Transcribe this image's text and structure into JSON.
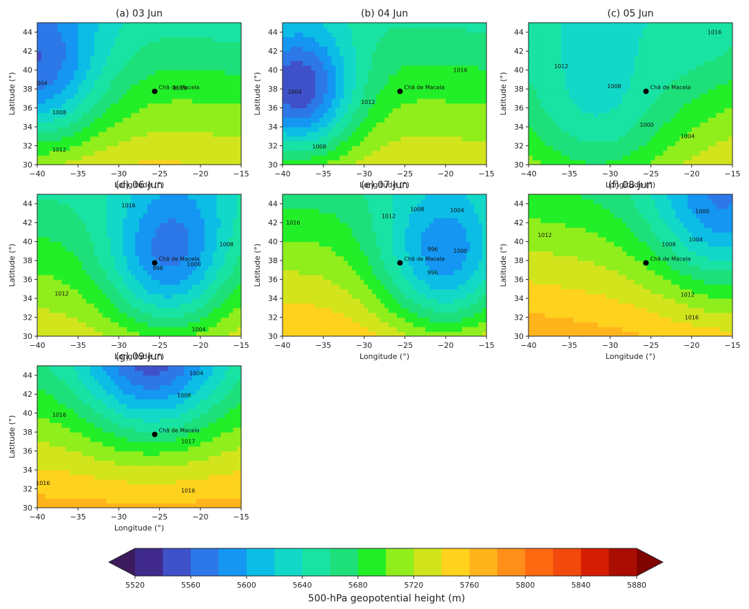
{
  "station": "Chã de Macela",
  "station_location": {
    "lon": -25.6,
    "lat": 37.75
  },
  "axis": {
    "xlabel": "Longitude (°)",
    "ylabel": "Latitude (°)",
    "xticks": [
      "−40",
      "−35",
      "−30",
      "−25",
      "−20",
      "−15"
    ],
    "yticks": [
      "30",
      "32",
      "34",
      "36",
      "38",
      "40",
      "42",
      "44"
    ],
    "xlim": [
      -40,
      -15
    ],
    "ylim": [
      30,
      45
    ]
  },
  "panels": [
    {
      "title": "(a) 03 Jun",
      "height_field": {
        "base": 5700,
        "grad": [
          -0.6,
          6.0
        ],
        "features": [
          {
            "lon": -40.5,
            "lat": 39.8,
            "amp": -130,
            "r": 6
          }
        ]
      },
      "contours": [
        {
          "label": "1004",
          "label_at": [
            -39.6,
            38.4
          ]
        },
        {
          "label": "1008",
          "label_at": [
            -37.3,
            35.3
          ]
        },
        {
          "label": "1012",
          "label_at": [
            -37.3,
            31.4
          ]
        },
        {
          "label": "1016",
          "label_at": [
            -22.5,
            37.9
          ]
        }
      ]
    },
    {
      "title": "(b) 04 Jun",
      "height_field": {
        "base": 5700,
        "grad": [
          -0.5,
          5.2
        ],
        "features": [
          {
            "lon": -38.3,
            "lat": 37.5,
            "amp": -160,
            "r": 5
          }
        ]
      },
      "contours": [
        {
          "label": "1004",
          "label_at": [
            -38.5,
            37.5
          ]
        },
        {
          "label": "1008",
          "label_at": [
            -35.5,
            31.7
          ]
        },
        {
          "label": "1012",
          "label_at": [
            -29.5,
            36.4
          ]
        },
        {
          "label": "1016",
          "label_at": [
            -18.2,
            39.8
          ]
        }
      ]
    },
    {
      "title": "(c) 05 Jun",
      "height_field": {
        "base": 5700,
        "grad": [
          0.3,
          5.0
        ],
        "features": [
          {
            "lon": -31.5,
            "lat": 35.0,
            "amp": -70,
            "r": 7
          },
          {
            "lon": -18,
            "lat": 43,
            "amp": -20,
            "r": 5
          }
        ]
      },
      "contours": [
        {
          "label": "1016",
          "label_at": [
            -17.2,
            43.8
          ]
        },
        {
          "label": "1012",
          "label_at": [
            -36.0,
            40.2
          ]
        },
        {
          "label": "1008",
          "label_at": [
            -29.5,
            38.1
          ]
        },
        {
          "label": "1000",
          "label_at": [
            -25.5,
            34.0
          ]
        },
        {
          "label": "1004",
          "label_at": [
            -20.5,
            32.8
          ]
        }
      ]
    },
    {
      "title": "(d) 06 Jun",
      "height_field": {
        "base": 5700,
        "grad": [
          0.2,
          5.2
        ],
        "features": [
          {
            "lon": -24.0,
            "lat": 37.6,
            "amp": -115,
            "r": 5.5
          },
          {
            "lon": -21,
            "lat": 44,
            "amp": -20,
            "r": 5
          }
        ]
      },
      "contours": [
        {
          "label": "1016",
          "label_at": [
            -28.8,
            43.6
          ]
        },
        {
          "label": "1012",
          "label_at": [
            -37.0,
            34.3
          ]
        },
        {
          "label": "1008",
          "label_at": [
            -16.8,
            39.5
          ]
        },
        {
          "label": "1000",
          "label_at": [
            -20.8,
            37.4
          ]
        },
        {
          "label": "1004",
          "label_at": [
            -20.2,
            30.5
          ]
        },
        {
          "label": "996",
          "label_at": [
            -25.2,
            37.0
          ]
        }
      ]
    },
    {
      "title": "(e) 07 Jun",
      "height_field": {
        "base": 5720,
        "grad": [
          0.3,
          6.0
        ],
        "features": [
          {
            "lon": -20.0,
            "lat": 37.6,
            "amp": -130,
            "r": 6
          }
        ]
      },
      "contours": [
        {
          "label": "1016",
          "label_at": [
            -38.7,
            41.8
          ]
        },
        {
          "label": "1012",
          "label_at": [
            -27.0,
            42.5
          ]
        },
        {
          "label": "1008",
          "label_at": [
            -23.5,
            43.2
          ]
        },
        {
          "label": "1004",
          "label_at": [
            -18.6,
            43.1
          ]
        },
        {
          "label": "1000",
          "label_at": [
            -18.2,
            38.8
          ]
        },
        {
          "label": "996",
          "label_at": [
            -21.6,
            39.0
          ]
        },
        {
          "label": "996",
          "label_at": [
            -21.6,
            36.5
          ]
        }
      ]
    },
    {
      "title": "(f) 08 Jun",
      "height_field": {
        "base": 5720,
        "grad": [
          -0.8,
          6.0
        ],
        "features": [
          {
            "lon": -16.5,
            "lat": 43.0,
            "amp": -95,
            "r": 6
          }
        ]
      },
      "contours": [
        {
          "label": "1000",
          "label_at": [
            -18.7,
            43.0
          ]
        },
        {
          "label": "1004",
          "label_at": [
            -19.5,
            40.0
          ]
        },
        {
          "label": "1008",
          "label_at": [
            -22.8,
            39.5
          ]
        },
        {
          "label": "1012",
          "label_at": [
            -38.0,
            40.5
          ]
        },
        {
          "label": "1012",
          "label_at": [
            -20.5,
            34.2
          ]
        },
        {
          "label": "1016",
          "label_at": [
            -20.0,
            31.8
          ]
        }
      ]
    },
    {
      "title": "(g) 09 Jun",
      "height_field": {
        "base": 5720,
        "grad": [
          0.0,
          6.5
        ],
        "features": [
          {
            "lon": -26.0,
            "lat": 45.5,
            "amp": -120,
            "r": 6
          }
        ]
      },
      "contours": [
        {
          "label": "1004",
          "label_at": [
            -20.5,
            44.0
          ]
        },
        {
          "label": "1008",
          "label_at": [
            -22.0,
            41.7
          ]
        },
        {
          "label": "1016",
          "label_at": [
            -37.3,
            39.6
          ]
        },
        {
          "label": "1017",
          "label_at": [
            -21.5,
            36.8
          ]
        },
        {
          "label": "1016",
          "label_at": [
            -21.5,
            31.6
          ]
        },
        {
          "label": "1016",
          "label_at": [
            -39.3,
            32.4
          ]
        }
      ]
    }
  ],
  "colorbar": {
    "label": "500-hPa geopotential height (m)",
    "levels": [
      5520,
      5540,
      5560,
      5580,
      5600,
      5620,
      5640,
      5660,
      5680,
      5700,
      5720,
      5740,
      5760,
      5780,
      5800,
      5820,
      5840,
      5860,
      5880
    ],
    "tick_labels": [
      "5520",
      "5560",
      "5600",
      "5640",
      "5680",
      "5720",
      "5760",
      "5800",
      "5840",
      "5880"
    ],
    "colors": [
      "#3b1a5e",
      "#3f2a8c",
      "#3f51c8",
      "#2d78e8",
      "#1496f2",
      "#0cbde6",
      "#12d8c8",
      "#19e3a2",
      "#1de07a",
      "#22ef28",
      "#90ee1c",
      "#d2e41c",
      "#ffd21e",
      "#ffb41c",
      "#ff8f1a",
      "#ff6a10",
      "#f24a0c",
      "#d61e05",
      "#a90d02",
      "#7f0400"
    ]
  }
}
